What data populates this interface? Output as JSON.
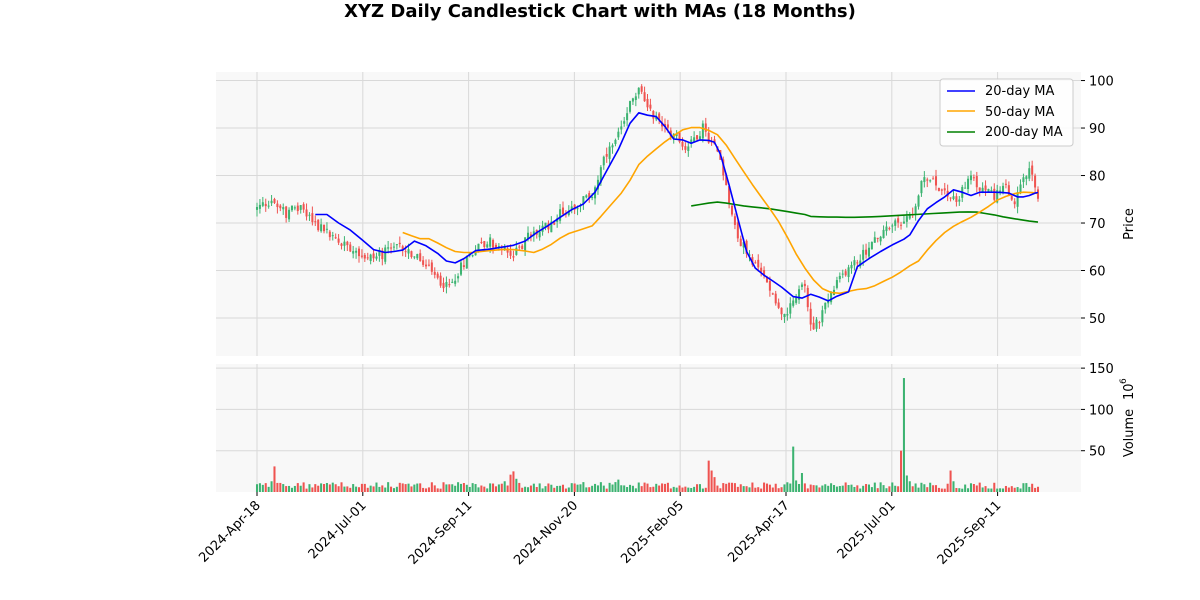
{
  "chart_data": {
    "type": "candlestick",
    "title": "XYZ Daily Candlestick Chart with MAs (18 Months)",
    "price_axis": {
      "label": "Price",
      "ylim": [
        42,
        101.8
      ],
      "ticks": [
        50,
        60,
        70,
        80,
        90,
        100
      ],
      "side": "right"
    },
    "volume_axis": {
      "label": "Volume",
      "exponent_label": "10^6",
      "multiplier_base": "10",
      "multiplier_exp": "6",
      "ylim": [
        0,
        155
      ],
      "ticks": [
        50,
        100,
        150
      ],
      "side": "right"
    },
    "x_axis": {
      "ticks": [
        "2024-Apr-18",
        "2024-Jul-01",
        "2024-Sep-11",
        "2024-Nov-20",
        "2025-Feb-05",
        "2025-Apr-17",
        "2025-Jul-01",
        "2025-Sep-11"
      ],
      "range": [
        "2024-Apr-09",
        "2025-Oct-24"
      ]
    },
    "colors": {
      "up": "#26a69a",
      "up_fill": "#3cb371",
      "down": "#ef5350",
      "ma20": "#0000ff",
      "ma50": "#ffa500",
      "ma200": "#008000",
      "grid": "#d9d9d9",
      "panel": "#f8f8f8"
    },
    "grid": true,
    "legend": {
      "placement": "top-right",
      "entries": [
        "20-day MA",
        "50-day MA",
        "200-day MA"
      ]
    },
    "price_path": [
      [
        0,
        73
      ],
      [
        5,
        75
      ],
      [
        10,
        72
      ],
      [
        15,
        73.5
      ],
      [
        20,
        70
      ],
      [
        28,
        66
      ],
      [
        33,
        65
      ],
      [
        38,
        62.5
      ],
      [
        43,
        63.5
      ],
      [
        50,
        65
      ],
      [
        56,
        62
      ],
      [
        62,
        58
      ],
      [
        66,
        56.5
      ],
      [
        70,
        61
      ],
      [
        75,
        65
      ],
      [
        80,
        66
      ],
      [
        85,
        64
      ],
      [
        88,
        63
      ],
      [
        93,
        67
      ],
      [
        99,
        69
      ],
      [
        104,
        72
      ],
      [
        110,
        74
      ],
      [
        115,
        76
      ],
      [
        119,
        83
      ],
      [
        123,
        87
      ],
      [
        127,
        94
      ],
      [
        131,
        98
      ],
      [
        134,
        95
      ],
      [
        137,
        92
      ],
      [
        141,
        90
      ],
      [
        144,
        88
      ],
      [
        147,
        86
      ],
      [
        150,
        88
      ],
      [
        153,
        90
      ],
      [
        156,
        87
      ],
      [
        159,
        84
      ],
      [
        162,
        75
      ],
      [
        165,
        67
      ],
      [
        169,
        63
      ],
      [
        172,
        60
      ],
      [
        175,
        58
      ],
      [
        178,
        54
      ],
      [
        181,
        50
      ],
      [
        185,
        54
      ],
      [
        188,
        57
      ],
      [
        190,
        48
      ],
      [
        193,
        50
      ],
      [
        196,
        54
      ],
      [
        199,
        57
      ],
      [
        202,
        60
      ],
      [
        206,
        62
      ],
      [
        210,
        65
      ],
      [
        215,
        68
      ],
      [
        220,
        70
      ],
      [
        225,
        72
      ],
      [
        228,
        78
      ],
      [
        231,
        80
      ],
      [
        235,
        77
      ],
      [
        240,
        75
      ],
      [
        245,
        79
      ],
      [
        249,
        77
      ],
      [
        253,
        76
      ],
      [
        257,
        77
      ],
      [
        260,
        74
      ],
      [
        263,
        79
      ],
      [
        265,
        81
      ],
      [
        267,
        77
      ],
      [
        268,
        75
      ]
    ],
    "ma20_path": [
      [
        20,
        71.8
      ],
      [
        24,
        71.8
      ],
      [
        28,
        70
      ],
      [
        32,
        68.5
      ],
      [
        36,
        66.5
      ],
      [
        40,
        64.4
      ],
      [
        44,
        63.8
      ],
      [
        47,
        64
      ],
      [
        50,
        64.3
      ],
      [
        54,
        66.2
      ],
      [
        58,
        65.2
      ],
      [
        62,
        63.6
      ],
      [
        65,
        62
      ],
      [
        68,
        61.6
      ],
      [
        71,
        62.5
      ],
      [
        75,
        64.2
      ],
      [
        80,
        64.5
      ],
      [
        84,
        64.9
      ],
      [
        88,
        65.3
      ],
      [
        92,
        66.2
      ],
      [
        96,
        68
      ],
      [
        100,
        69.5
      ],
      [
        104,
        71.2
      ],
      [
        108,
        72.8
      ],
      [
        112,
        74
      ],
      [
        116,
        76.5
      ],
      [
        120,
        81
      ],
      [
        124,
        85.5
      ],
      [
        128,
        91
      ],
      [
        131,
        93.2
      ],
      [
        134,
        92.7
      ],
      [
        137,
        92.4
      ],
      [
        140,
        90.3
      ],
      [
        143,
        87.7
      ],
      [
        146,
        87.5
      ],
      [
        149,
        86.8
      ],
      [
        152,
        87.5
      ],
      [
        155,
        87.4
      ],
      [
        157,
        87
      ],
      [
        159,
        84.5
      ],
      [
        162,
        78
      ],
      [
        165,
        71
      ],
      [
        168,
        64
      ],
      [
        171,
        60.5
      ],
      [
        174,
        59
      ],
      [
        177,
        57.8
      ],
      [
        180,
        56.5
      ],
      [
        184,
        54.5
      ],
      [
        187,
        54.2
      ],
      [
        190,
        55
      ],
      [
        193,
        54.4
      ],
      [
        196,
        53.6
      ],
      [
        199,
        54.6
      ],
      [
        203,
        55.5
      ],
      [
        206,
        60.8
      ],
      [
        210,
        62.5
      ],
      [
        214,
        64
      ],
      [
        218,
        65.4
      ],
      [
        222,
        66.6
      ],
      [
        224,
        67.5
      ],
      [
        227,
        70.5
      ],
      [
        230,
        73
      ],
      [
        233,
        74.3
      ],
      [
        236,
        75.5
      ],
      [
        239,
        77
      ],
      [
        242,
        76.5
      ],
      [
        245,
        75.8
      ],
      [
        248,
        76.5
      ],
      [
        253,
        76.5
      ],
      [
        256,
        76.4
      ],
      [
        258,
        76.3
      ],
      [
        261,
        75.5
      ],
      [
        263,
        75.5
      ],
      [
        265,
        75.8
      ],
      [
        267,
        76.3
      ],
      [
        268,
        76.4
      ]
    ],
    "ma50_path": [
      [
        50,
        68
      ],
      [
        53,
        67.3
      ],
      [
        56,
        66.7
      ],
      [
        59,
        66.7
      ],
      [
        62,
        65.8
      ],
      [
        65,
        64.8
      ],
      [
        68,
        64
      ],
      [
        71,
        63.8
      ],
      [
        74,
        63.8
      ],
      [
        77,
        64
      ],
      [
        80,
        64.2
      ],
      [
        84,
        64.4
      ],
      [
        88,
        64.4
      ],
      [
        92,
        64.1
      ],
      [
        95,
        63.8
      ],
      [
        98,
        64.5
      ],
      [
        101,
        65.5
      ],
      [
        104,
        66.8
      ],
      [
        107,
        67.8
      ],
      [
        111,
        68.6
      ],
      [
        115,
        69.4
      ],
      [
        118,
        71.4
      ],
      [
        121,
        73.5
      ],
      [
        125,
        76.3
      ],
      [
        128,
        79
      ],
      [
        131,
        82.3
      ],
      [
        134,
        84.1
      ],
      [
        137,
        85.6
      ],
      [
        140,
        87.1
      ],
      [
        143,
        88.4
      ],
      [
        146,
        89.6
      ],
      [
        149,
        90.1
      ],
      [
        152,
        90.1
      ],
      [
        155,
        89.5
      ],
      [
        158,
        88.6
      ],
      [
        161,
        86.4
      ],
      [
        164,
        83.6
      ],
      [
        167,
        80.8
      ],
      [
        170,
        78.1
      ],
      [
        173,
        75.5
      ],
      [
        176,
        73
      ],
      [
        179,
        70.3
      ],
      [
        182,
        67
      ],
      [
        185,
        63.5
      ],
      [
        188,
        60.5
      ],
      [
        191,
        58
      ],
      [
        194,
        56.2
      ],
      [
        197,
        55.4
      ],
      [
        200,
        55.2
      ],
      [
        203,
        55.6
      ],
      [
        206,
        56
      ],
      [
        209,
        56.2
      ],
      [
        212,
        56.8
      ],
      [
        215,
        57.7
      ],
      [
        218,
        58.6
      ],
      [
        221,
        59.7
      ],
      [
        224,
        61
      ],
      [
        227,
        62
      ],
      [
        230,
        64.3
      ],
      [
        233,
        66.3
      ],
      [
        236,
        68
      ],
      [
        239,
        69.3
      ],
      [
        242,
        70.3
      ],
      [
        245,
        71.2
      ],
      [
        248,
        72.3
      ],
      [
        251,
        73.5
      ],
      [
        254,
        74.8
      ],
      [
        257,
        75.6
      ],
      [
        260,
        76.2
      ],
      [
        263,
        76.5
      ],
      [
        266,
        76.4
      ],
      [
        268,
        76.2
      ]
    ],
    "ma200_path": [
      [
        149,
        73.6
      ],
      [
        152,
        73.9
      ],
      [
        155,
        74.2
      ],
      [
        158,
        74.4
      ],
      [
        161,
        74.2
      ],
      [
        164,
        73.9
      ],
      [
        167,
        73.6
      ],
      [
        170,
        73.4
      ],
      [
        173,
        73.2
      ],
      [
        176,
        73.0
      ],
      [
        179,
        72.7
      ],
      [
        182,
        72.4
      ],
      [
        185,
        72.1
      ],
      [
        188,
        71.8
      ],
      [
        190,
        71.4
      ],
      [
        193,
        71.3
      ],
      [
        196,
        71.25
      ],
      [
        199,
        71.25
      ],
      [
        202,
        71.2
      ],
      [
        205,
        71.2
      ],
      [
        208,
        71.25
      ],
      [
        211,
        71.3
      ],
      [
        214,
        71.4
      ],
      [
        217,
        71.5
      ],
      [
        220,
        71.6
      ],
      [
        223,
        71.7
      ],
      [
        226,
        71.8
      ],
      [
        229,
        71.9
      ],
      [
        232,
        72.0
      ],
      [
        235,
        72.1
      ],
      [
        238,
        72.2
      ],
      [
        241,
        72.3
      ],
      [
        244,
        72.35
      ],
      [
        247,
        72.3
      ],
      [
        250,
        72.0
      ],
      [
        253,
        71.7
      ],
      [
        256,
        71.3
      ],
      [
        259,
        71.0
      ],
      [
        262,
        70.7
      ],
      [
        265,
        70.4
      ],
      [
        268,
        70.2
      ]
    ],
    "volume_spikes": [
      [
        5,
        13
      ],
      [
        6,
        31
      ],
      [
        7,
        11
      ],
      [
        43,
        8
      ],
      [
        85,
        13
      ],
      [
        87,
        21
      ],
      [
        88,
        25
      ],
      [
        89,
        16
      ],
      [
        90,
        11
      ],
      [
        123,
        12
      ],
      [
        124,
        15
      ],
      [
        155,
        38
      ],
      [
        156,
        26
      ],
      [
        157,
        18
      ],
      [
        184,
        55
      ],
      [
        185,
        14
      ],
      [
        187,
        23
      ],
      [
        221,
        50
      ],
      [
        222,
        138
      ],
      [
        223,
        20
      ],
      [
        224,
        13
      ],
      [
        238,
        26
      ],
      [
        239,
        13
      ]
    ],
    "volume_base": [
      4,
      12
    ]
  }
}
